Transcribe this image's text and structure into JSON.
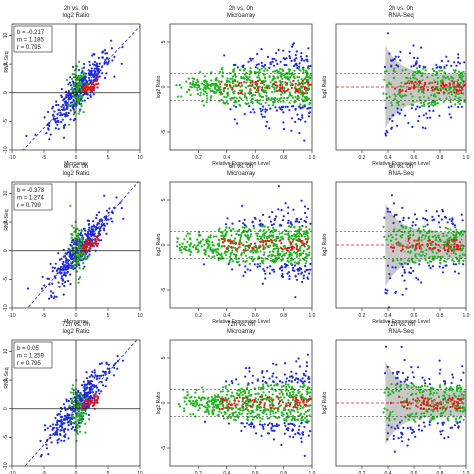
{
  "colors": {
    "blue": "#1f2bd6",
    "red": "#e01818",
    "green": "#22b422",
    "grey": "#c8c8c8",
    "axis": "#222222"
  },
  "chart_data": [
    {
      "type": "scatter",
      "title": "2h vs. 0h",
      "subtitle": "log2 Ratio",
      "xlabel": "Microarray",
      "ylabel": "RNA-Seq",
      "stats": [
        "b = -0.217",
        "m = 1.185",
        "r = 0.795"
      ],
      "xticks": [
        "-10",
        "-5",
        "0",
        "5",
        "10"
      ],
      "yticks": [
        "-10",
        "-5",
        "0",
        "5",
        "10"
      ],
      "xlim": [
        -10,
        10
      ],
      "ylim": [
        -10,
        12
      ],
      "fit": {
        "slope": 1.185,
        "intercept": -0.217
      }
    },
    {
      "type": "scatter",
      "title": "2h vs. 0h",
      "subtitle": "Microarray",
      "xlabel": "Relative Expression Level",
      "ylabel": "log2 Ratio",
      "xticks": [
        "0.2",
        "0.4",
        "0.6",
        "0.8",
        "1.0"
      ],
      "yticks": [
        "-5",
        "0",
        "5"
      ],
      "xlim": [
        0,
        1
      ],
      "ylim": [
        -7,
        7
      ],
      "threshold": 1.5
    },
    {
      "type": "scatter",
      "title": "2h vs. 0h",
      "subtitle": "RNA-Seq",
      "xlabel": "Relative Expression Level",
      "ylabel": "log2 Ratio",
      "xticks": [
        "0.2",
        "0.4",
        "0.6",
        "0.8",
        "1.0"
      ],
      "yticks": [],
      "xlim": [
        0,
        1
      ],
      "ylim": [
        -7,
        7
      ],
      "threshold": 1.5
    },
    {
      "type": "scatter",
      "title": "6h vs. 0h",
      "subtitle": "log2 Ratio",
      "xlabel": "Microarray",
      "ylabel": "RNA-Seq",
      "stats": [
        "b = -0.378",
        "m = 1.274",
        "r = 0.799"
      ],
      "xticks": [
        "-10",
        "-5",
        "0",
        "5",
        "10"
      ],
      "yticks": [
        "-10",
        "-5",
        "0",
        "5",
        "10"
      ],
      "xlim": [
        -10,
        10
      ],
      "ylim": [
        -10,
        12
      ],
      "fit": {
        "slope": 1.274,
        "intercept": -0.378
      }
    },
    {
      "type": "scatter",
      "title": "6h vs. 0h",
      "subtitle": "Microarray",
      "xlabel": "Relative Expression Level",
      "ylabel": "log2 Ratio",
      "xticks": [
        "0.2",
        "0.4",
        "0.6",
        "0.8",
        "1.0"
      ],
      "yticks": [
        "-5",
        "0",
        "5"
      ],
      "xlim": [
        0,
        1
      ],
      "ylim": [
        -7,
        7
      ],
      "threshold": 1.5
    },
    {
      "type": "scatter",
      "title": "6h vs. 0h",
      "subtitle": "RNA-Seq",
      "xlabel": "Relative Expression Level",
      "ylabel": "log2 Ratio",
      "xticks": [
        "0.2",
        "0.4",
        "0.6",
        "0.8",
        "1.0"
      ],
      "yticks": [],
      "xlim": [
        0,
        1
      ],
      "ylim": [
        -7,
        7
      ],
      "threshold": 1.5
    },
    {
      "type": "scatter",
      "title": "72h vs. 0h",
      "subtitle": "log2 Ratio",
      "xlabel": "Microarray",
      "ylabel": "RNA-Seq",
      "stats": [
        "b = 0.05",
        "m = 1.259",
        "r = 0.795"
      ],
      "xticks": [
        "-10",
        "-5",
        "0",
        "5",
        "10"
      ],
      "yticks": [
        "-10",
        "-5",
        "0",
        "5",
        "10"
      ],
      "xlim": [
        -10,
        10
      ],
      "ylim": [
        -10,
        12
      ],
      "fit": {
        "slope": 1.259,
        "intercept": 0.05
      }
    },
    {
      "type": "scatter",
      "title": "72h vs. 0h",
      "subtitle": "Microarray",
      "xlabel": "Relative Expression Level",
      "ylabel": "log2 Ratio",
      "xticks": [
        "0.2",
        "0.4",
        "0.6",
        "0.8",
        "1.0"
      ],
      "yticks": [
        "-5",
        "0",
        "5"
      ],
      "xlim": [
        0,
        1
      ],
      "ylim": [
        -7,
        7
      ],
      "threshold": 1.5
    },
    {
      "type": "scatter",
      "title": "72h vs. 0h",
      "subtitle": "RNA-Seq",
      "xlabel": "Relative Expression Level",
      "ylabel": "log2 Ratio",
      "xticks": [
        "0.2",
        "0.4",
        "0.6",
        "0.8",
        "1.0"
      ],
      "yticks": [],
      "xlim": [
        0,
        1
      ],
      "ylim": [
        -7,
        7
      ],
      "threshold": 1.5
    }
  ]
}
